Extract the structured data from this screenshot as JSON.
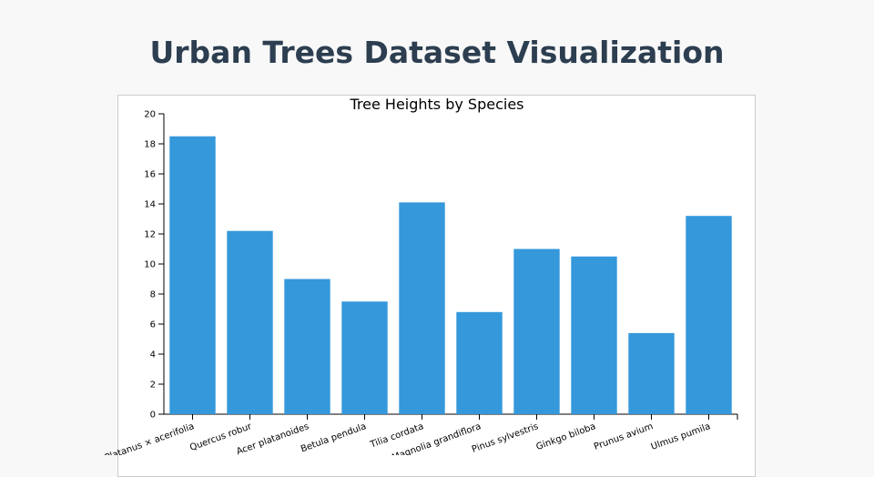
{
  "page": {
    "title": "Urban Trees Dataset Visualization"
  },
  "chart_data": {
    "type": "bar",
    "title": "Tree Heights by Species",
    "xlabel": "",
    "ylabel": "",
    "categories": [
      "Platanus × acerifolia",
      "Quercus robur",
      "Acer platanoides",
      "Betula pendula",
      "Tilia cordata",
      "Magnolia grandiflora",
      "Pinus sylvestris",
      "Ginkgo biloba",
      "Prunus avium",
      "Ulmus pumila"
    ],
    "values": [
      18.5,
      12.2,
      9.0,
      7.5,
      14.1,
      6.8,
      11.0,
      10.5,
      5.4,
      13.2
    ],
    "ylim": [
      0,
      20
    ],
    "yticks": [
      0,
      2,
      4,
      6,
      8,
      10,
      12,
      14,
      16,
      18,
      20
    ],
    "bar_color": "#3498db",
    "grid": false,
    "legend": "none"
  }
}
